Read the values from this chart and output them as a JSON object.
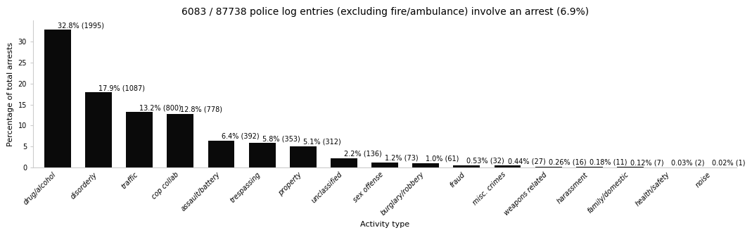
{
  "title": "6083 / 87738 police log entries (excluding fire/ambulance) involve an arrest (6.9%)",
  "xlabel": "Activity type",
  "ylabel": "Percentage of total arrests",
  "categories": [
    "drug/alcohol",
    "disorderly",
    "traffic",
    "cop collab",
    "assault/battery",
    "trespassing",
    "property",
    "unclassified",
    "sex offense",
    "burglary/robbery",
    "fraud",
    "misc. crimes",
    "weapons related",
    "harassment",
    "family/domestic",
    "health/safety",
    "noise"
  ],
  "values": [
    32.8,
    17.9,
    13.2,
    12.8,
    6.4,
    5.8,
    5.1,
    2.2,
    1.2,
    1.0,
    0.53,
    0.44,
    0.26,
    0.18,
    0.12,
    0.03,
    0.02
  ],
  "labels": [
    "32.8% (1995)",
    "17.9% (1087)",
    "13.2% (800)",
    "12.8% (778)",
    "6.4% (392)",
    "5.8% (353)",
    "5.1% (312)",
    "2.2% (136)",
    "1.2% (73)",
    "1.0% (61)",
    "0.53% (32)",
    "0.44% (27)",
    "0.26% (16)",
    "0.18% (11)",
    "0.12% (7)",
    "0.03% (2)",
    "0.02% (1)"
  ],
  "bar_color": "#0a0a0a",
  "background_color": "#ffffff",
  "ylim": [
    0,
    35
  ],
  "title_fontsize": 10,
  "label_fontsize": 7,
  "tick_fontsize": 7,
  "axis_label_fontsize": 8,
  "yticks": [
    0,
    5,
    10,
    15,
    20,
    25,
    30
  ],
  "ytick_labels": [
    "0",
    "5",
    "10",
    "15",
    "20",
    "25",
    "30"
  ]
}
